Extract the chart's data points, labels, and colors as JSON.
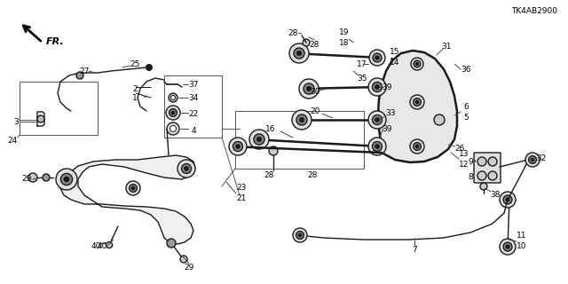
{
  "bg_color": "#ffffff",
  "line_color": "#1a1a1a",
  "diagram_code": "TK4AB2900",
  "parts_color": "#1a1a1a"
}
